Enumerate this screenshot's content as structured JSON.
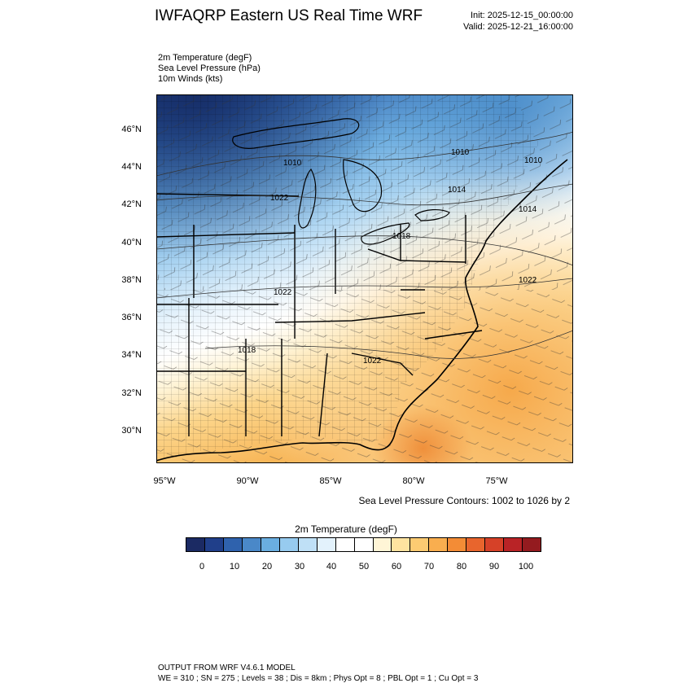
{
  "header": {
    "title": "IWFAQRP Eastern US Real Time WRF",
    "init": "Init: 2025-12-15_00:00:00",
    "valid": "Valid: 2025-12-21_16:00:00"
  },
  "fields": [
    "2m Temperature   (degF)",
    "Sea Level Pressure   (hPa)",
    "10m Winds   (kts)"
  ],
  "lat_labels": [
    "46°N",
    "44°N",
    "42°N",
    "40°N",
    "38°N",
    "36°N",
    "34°N",
    "32°N",
    "30°N"
  ],
  "lon_labels": [
    "95°W",
    "90°W",
    "85°W",
    "80°W",
    "75°W"
  ],
  "isobar_labels": [
    "1010",
    "1010",
    "1014",
    "1010",
    "1014",
    "1022",
    "1018",
    "1022",
    "1022",
    "1018",
    "1022"
  ],
  "slp_note": "Sea Level Pressure Contours: 1002 to 1026 by 2",
  "colorbar": {
    "title": "2m Temperature  (degF)",
    "ticks": [
      "0",
      "10",
      "20",
      "30",
      "40",
      "50",
      "60",
      "70",
      "80",
      "90",
      "100"
    ],
    "colors": [
      "#1b2a63",
      "#203f8a",
      "#2f62ad",
      "#4a88c8",
      "#6aaee0",
      "#97cbef",
      "#bfe0f6",
      "#e3f2fc",
      "#ffffff",
      "#ffffff",
      "#fff5d6",
      "#ffe3a0",
      "#fccb72",
      "#f9ae4f",
      "#f38c36",
      "#e8652d",
      "#d64128",
      "#b92326",
      "#941b1f"
    ]
  },
  "footer": {
    "line1": "OUTPUT FROM WRF V4.6.1 MODEL",
    "line2": "WE = 310 ; SN = 275 ; Levels = 38 ; Dis = 8km ; Phys Opt = 8 ; PBL Opt = 1 ; Cu Opt = 3"
  }
}
